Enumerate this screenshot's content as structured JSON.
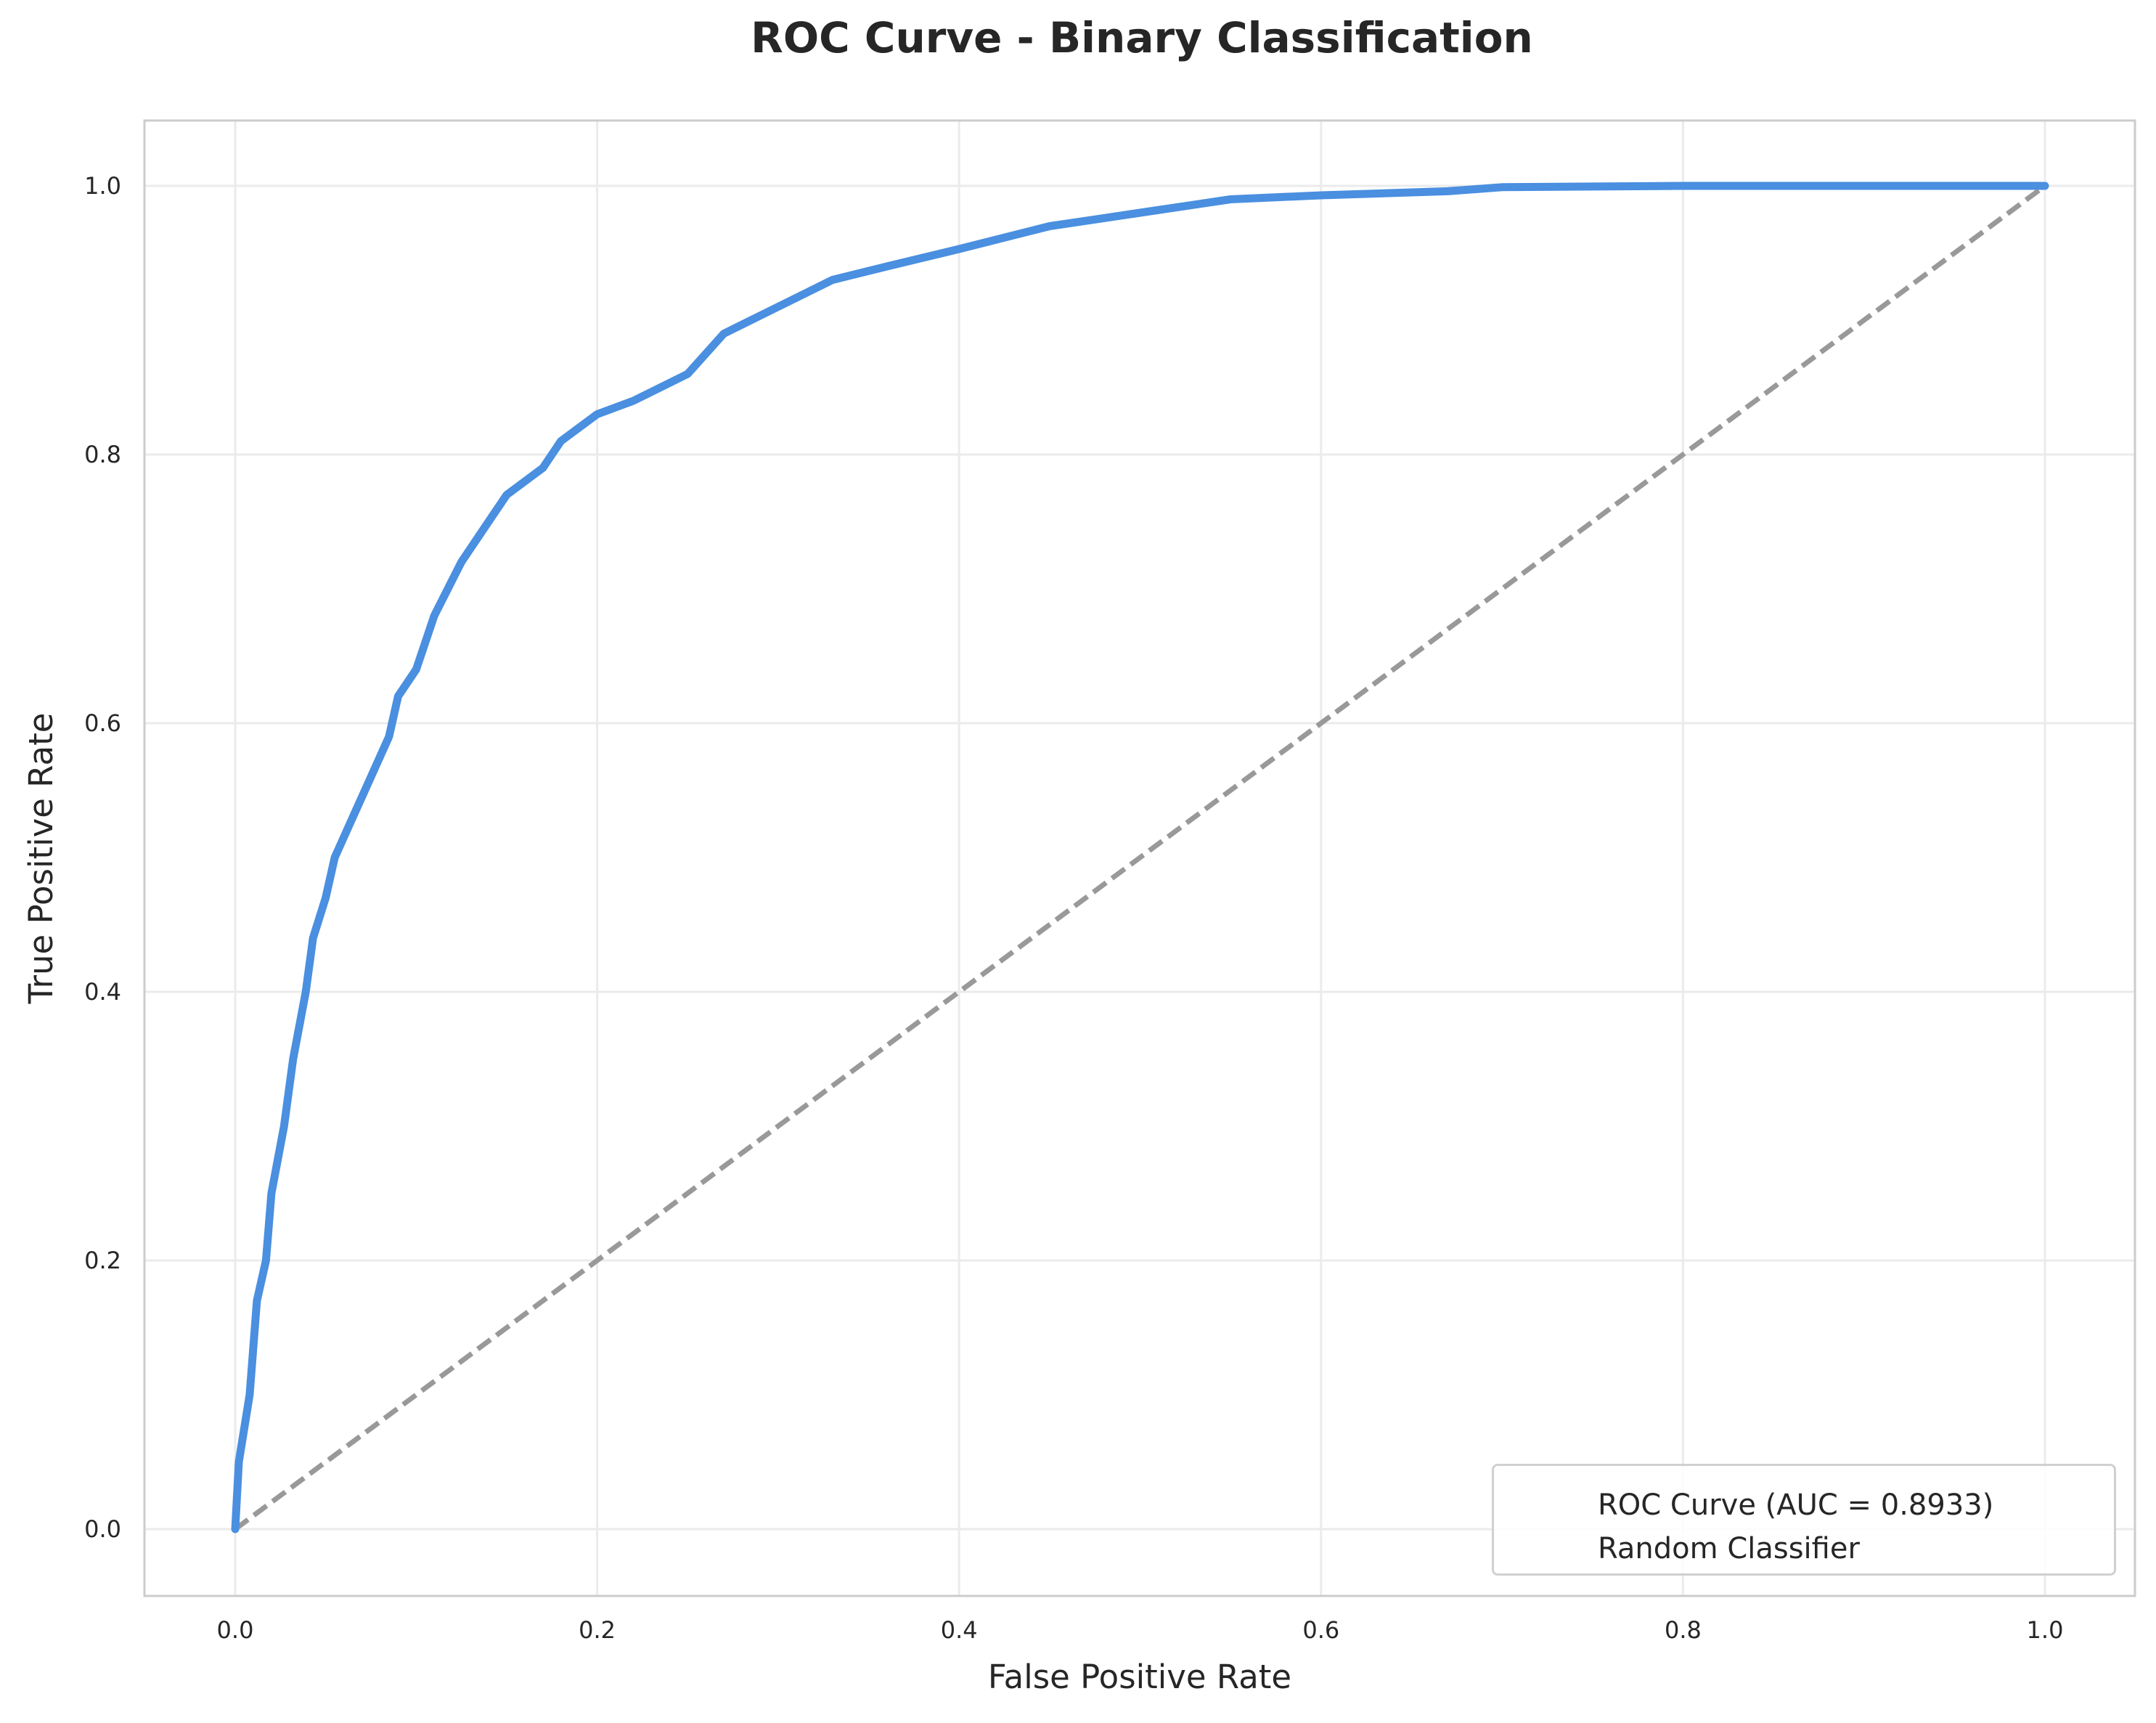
{
  "chart_data": {
    "type": "line",
    "title": "ROC Curve - Binary Classification",
    "xlabel": "False Positive Rate",
    "ylabel": "True Positive Rate",
    "xlim": [
      -0.05,
      1.05
    ],
    "ylim": [
      -0.05,
      1.05
    ],
    "xticks": [
      "0.0",
      "0.2",
      "0.4",
      "0.6",
      "0.8",
      "1.0"
    ],
    "yticks": [
      "0.0",
      "0.2",
      "0.4",
      "0.6",
      "0.8",
      "1.0"
    ],
    "grid": true,
    "legend_position": "lower right",
    "series": [
      {
        "name": "ROC Curve (AUC = 0.8933)",
        "color": "#4a8fe0",
        "style": "solid",
        "x": [
          0.0,
          0.002,
          0.008,
          0.012,
          0.017,
          0.02,
          0.027,
          0.032,
          0.039,
          0.043,
          0.05,
          0.055,
          0.065,
          0.075,
          0.085,
          0.09,
          0.1,
          0.11,
          0.125,
          0.14,
          0.15,
          0.17,
          0.18,
          0.2,
          0.22,
          0.25,
          0.27,
          0.3,
          0.33,
          0.36,
          0.4,
          0.45,
          0.5,
          0.55,
          0.6,
          0.67,
          0.7,
          0.8,
          1.0
        ],
        "y": [
          0.0,
          0.05,
          0.1,
          0.17,
          0.2,
          0.25,
          0.3,
          0.35,
          0.4,
          0.44,
          0.47,
          0.5,
          0.53,
          0.56,
          0.59,
          0.62,
          0.64,
          0.68,
          0.72,
          0.75,
          0.77,
          0.79,
          0.81,
          0.83,
          0.84,
          0.86,
          0.89,
          0.91,
          0.93,
          0.94,
          0.953,
          0.97,
          0.98,
          0.99,
          0.993,
          0.996,
          0.999,
          1.0,
          1.0
        ]
      },
      {
        "name": "Random Classifier",
        "color": "#999999",
        "style": "dashed",
        "x": [
          0.0,
          1.0
        ],
        "y": [
          0.0,
          1.0
        ]
      }
    ],
    "auc": 0.8933
  },
  "title": "ROC Curve - Binary Classification",
  "axes": {
    "xlabel": "False Positive Rate",
    "ylabel": "True Positive Rate"
  },
  "legend": {
    "items": [
      {
        "label": "ROC Curve (AUC = 0.8933)",
        "color": "#4a8fe0"
      },
      {
        "label": "Random Classifier",
        "color": "#999999"
      }
    ]
  },
  "colors": {
    "roc": "#4a8fe0",
    "random": "#999999",
    "grid": "#ebebeb",
    "spine": "#cccccc"
  }
}
